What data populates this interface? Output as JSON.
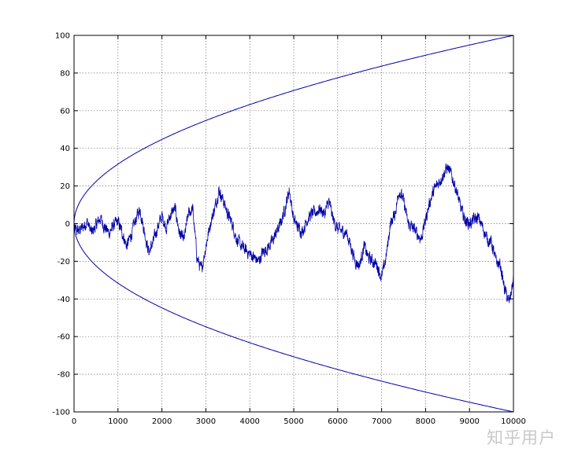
{
  "chart_data": {
    "type": "line",
    "title": "",
    "xlabel": "",
    "ylabel": "",
    "xlim": [
      0,
      10000
    ],
    "ylim": [
      -100,
      100
    ],
    "x_ticks": [
      0,
      1000,
      2000,
      3000,
      4000,
      5000,
      6000,
      7000,
      8000,
      9000,
      10000
    ],
    "y_ticks": [
      -100,
      -80,
      -60,
      -40,
      -20,
      0,
      20,
      40,
      60,
      80,
      100
    ],
    "grid": true,
    "grid_style": "dotted",
    "line_color": "#0000aa",
    "series": [
      {
        "kind": "curve",
        "formula": "y = sqrt(x)",
        "x": [
          0,
          100,
          250,
          500,
          1000,
          1500,
          2000,
          3000,
          4000,
          5000,
          6000,
          7000,
          8000,
          9000,
          10000
        ],
        "y": [
          0,
          10,
          15.8,
          22.4,
          31.6,
          38.7,
          44.7,
          54.8,
          63.2,
          70.7,
          77.5,
          83.7,
          89.4,
          94.9,
          100
        ]
      },
      {
        "kind": "curve",
        "formula": "y = -sqrt(x)",
        "x": [
          0,
          100,
          250,
          500,
          1000,
          1500,
          2000,
          3000,
          4000,
          5000,
          6000,
          7000,
          8000,
          9000,
          10000
        ],
        "y": [
          0,
          -10,
          -15.8,
          -22.4,
          -31.6,
          -38.7,
          -44.7,
          -54.8,
          -63.2,
          -70.7,
          -77.5,
          -83.7,
          -89.4,
          -94.9,
          -100
        ]
      },
      {
        "kind": "random_walk",
        "x": [
          0,
          100,
          200,
          300,
          400,
          500,
          600,
          700,
          800,
          900,
          1000,
          1100,
          1200,
          1300,
          1400,
          1500,
          1600,
          1700,
          1800,
          1900,
          2000,
          2100,
          2200,
          2300,
          2400,
          2500,
          2600,
          2700,
          2800,
          2900,
          3000,
          3100,
          3200,
          3300,
          3400,
          3500,
          3600,
          3700,
          3800,
          3900,
          4000,
          4100,
          4200,
          4300,
          4400,
          4500,
          4600,
          4700,
          4800,
          4900,
          5000,
          5100,
          5200,
          5300,
          5400,
          5500,
          5600,
          5700,
          5800,
          5900,
          6000,
          6100,
          6200,
          6300,
          6400,
          6500,
          6600,
          6700,
          6800,
          6900,
          7000,
          7100,
          7200,
          7300,
          7400,
          7500,
          7600,
          7700,
          7800,
          7900,
          8000,
          8100,
          8200,
          8300,
          8400,
          8500,
          8600,
          8700,
          8800,
          8900,
          9000,
          9100,
          9200,
          9300,
          9400,
          9500,
          9600,
          9700,
          9800,
          9900,
          10000
        ],
        "y": [
          -3,
          -4,
          -2,
          1,
          -5,
          -1,
          3,
          -2,
          -5,
          -1,
          1,
          -5,
          -12,
          -6,
          2,
          8,
          -4,
          -15,
          -10,
          -2,
          4,
          -2,
          5,
          8,
          -5,
          -9,
          5,
          8,
          -18,
          -25,
          -12,
          0,
          8,
          18,
          12,
          5,
          0,
          -8,
          -12,
          -14,
          -16,
          -18,
          -20,
          -15,
          -13,
          -10,
          -5,
          0,
          8,
          18,
          2,
          -2,
          -4,
          2,
          5,
          6,
          8,
          5,
          12,
          2,
          -3,
          -4,
          -5,
          -12,
          -20,
          -22,
          -12,
          -18,
          -20,
          -22,
          -29,
          -18,
          0,
          5,
          18,
          12,
          0,
          -2,
          -5,
          -8,
          2,
          12,
          18,
          22,
          26,
          30,
          25,
          18,
          8,
          2,
          0,
          2,
          3,
          -2,
          -8,
          -10,
          -20,
          -22,
          -35,
          -42,
          -30
        ]
      }
    ]
  },
  "watermark": "知乎用户"
}
